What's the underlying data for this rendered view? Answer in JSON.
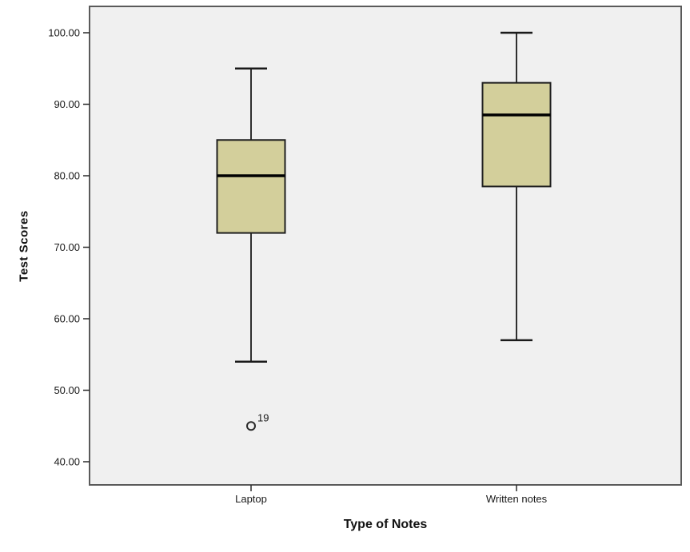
{
  "figure": {
    "background": "#ffffff",
    "panel_background": "#f0f0f0",
    "panel_border_color": "#5a5a5a",
    "text_color": "#1a1a1a"
  },
  "chart_data": {
    "type": "boxplot",
    "title": "",
    "xlabel": "Type of Notes",
    "ylabel": "Test Scores",
    "legend": "none",
    "grid": "off",
    "y_axis": {
      "min": 40,
      "max": 100,
      "tick_step": 10,
      "ticks": [
        {
          "value": 100,
          "label": "100.00"
        },
        {
          "value": 90,
          "label": "90.00"
        },
        {
          "value": 80,
          "label": "80.00"
        },
        {
          "value": 70,
          "label": "70.00"
        },
        {
          "value": 60,
          "label": "60.00"
        },
        {
          "value": 50,
          "label": "50.00"
        },
        {
          "value": 40,
          "label": "40.00"
        }
      ]
    },
    "categories": [
      "Laptop",
      "Written notes"
    ],
    "series": [
      {
        "category": "Laptop",
        "whisker_low": 54,
        "q1": 72,
        "median": 80,
        "q3": 85,
        "whisker_high": 95,
        "outliers": [
          {
            "value": 45,
            "label": "19"
          }
        ]
      },
      {
        "category": "Written notes",
        "whisker_low": 57,
        "q1": 78.5,
        "median": 88.5,
        "q3": 93,
        "whisker_high": 100,
        "outliers": []
      }
    ],
    "style": {
      "box_fill": "#d3cf9b",
      "box_border": "#1f1f1f",
      "median_color": "#000000",
      "whisker_color": "#1a1a1a",
      "outlier_stroke": "#2a2a2a"
    }
  }
}
